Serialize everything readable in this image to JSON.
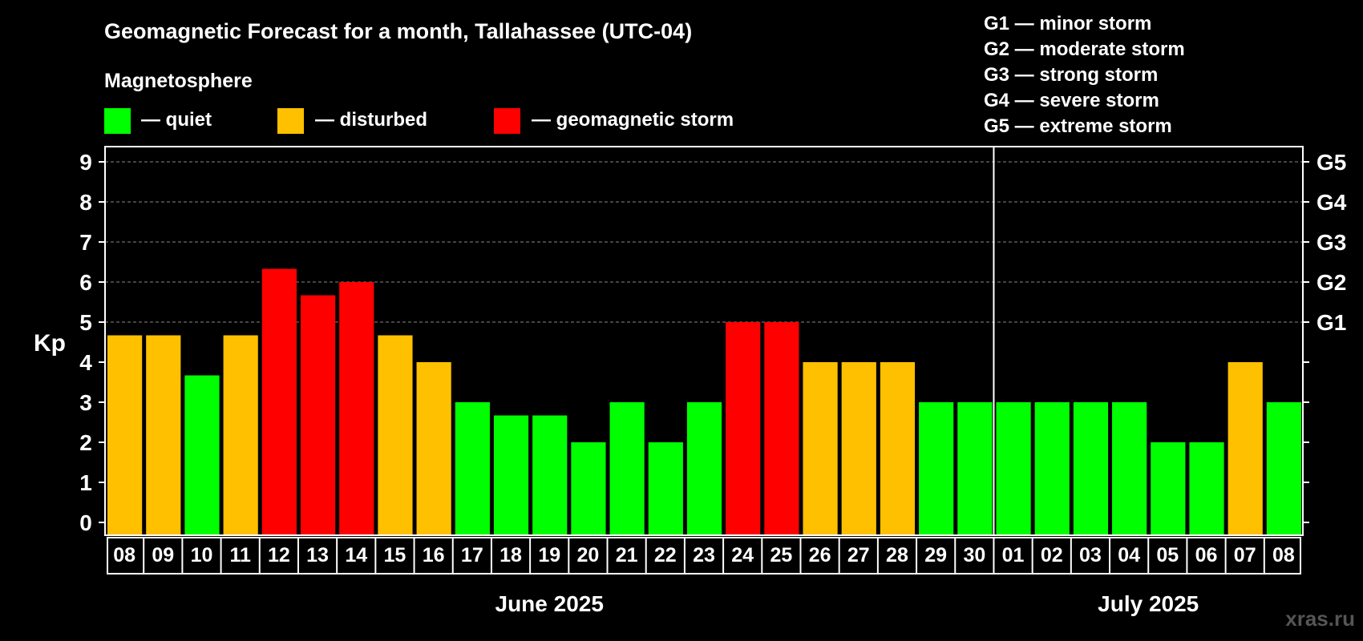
{
  "title": "Geomagnetic Forecast for a month, Tallahassee (UTC-04)",
  "legend": {
    "heading": "Magnetosphere",
    "items": [
      {
        "label": "— quiet",
        "color": "#00ff00"
      },
      {
        "label": "— disturbed",
        "color": "#ffc000"
      },
      {
        "label": "— geomagnetic storm",
        "color": "#ff0000"
      }
    ]
  },
  "storm_scale": [
    "G1 — minor storm",
    "G2 — moderate storm",
    "G3 — strong storm",
    "G4 — severe storm",
    "G5 — extreme storm"
  ],
  "watermark": "xras.ru",
  "chart_data": {
    "type": "bar",
    "ylabel": "Kp",
    "ylim": [
      0,
      9
    ],
    "yticks": [
      0,
      1,
      2,
      3,
      4,
      5,
      6,
      7,
      8,
      9
    ],
    "right_ticks": [
      {
        "value": 5,
        "label": "G1"
      },
      {
        "value": 6,
        "label": "G2"
      },
      {
        "value": 7,
        "label": "G3"
      },
      {
        "value": 8,
        "label": "G4"
      },
      {
        "value": 9,
        "label": "G5"
      }
    ],
    "grid": "horizontal dashed",
    "categories": [
      "08",
      "09",
      "10",
      "11",
      "12",
      "13",
      "14",
      "15",
      "16",
      "17",
      "18",
      "19",
      "20",
      "21",
      "22",
      "23",
      "24",
      "25",
      "26",
      "27",
      "28",
      "29",
      "30",
      "01",
      "02",
      "03",
      "04",
      "05",
      "06",
      "07",
      "08"
    ],
    "values": [
      4.67,
      4.67,
      3.67,
      4.67,
      6.33,
      5.67,
      6,
      4.67,
      4,
      3,
      2.67,
      2.67,
      2,
      3,
      2,
      3,
      5,
      5,
      4,
      4,
      4,
      3,
      3,
      3,
      3,
      3,
      3,
      2,
      2,
      4,
      3
    ],
    "levels": [
      "disturbed",
      "disturbed",
      "quiet",
      "disturbed",
      "storm",
      "storm",
      "storm",
      "disturbed",
      "disturbed",
      "quiet",
      "quiet",
      "quiet",
      "quiet",
      "quiet",
      "quiet",
      "quiet",
      "storm",
      "storm",
      "disturbed",
      "disturbed",
      "disturbed",
      "quiet",
      "quiet",
      "quiet",
      "quiet",
      "quiet",
      "quiet",
      "quiet",
      "quiet",
      "disturbed",
      "quiet"
    ],
    "level_colors": {
      "quiet": "#00ff00",
      "disturbed": "#ffc000",
      "storm": "#ff0000"
    },
    "months": [
      {
        "label": "June 2025",
        "start_index": 0,
        "end_index": 22
      },
      {
        "label": "July 2025",
        "start_index": 23,
        "end_index": 30
      }
    ]
  }
}
